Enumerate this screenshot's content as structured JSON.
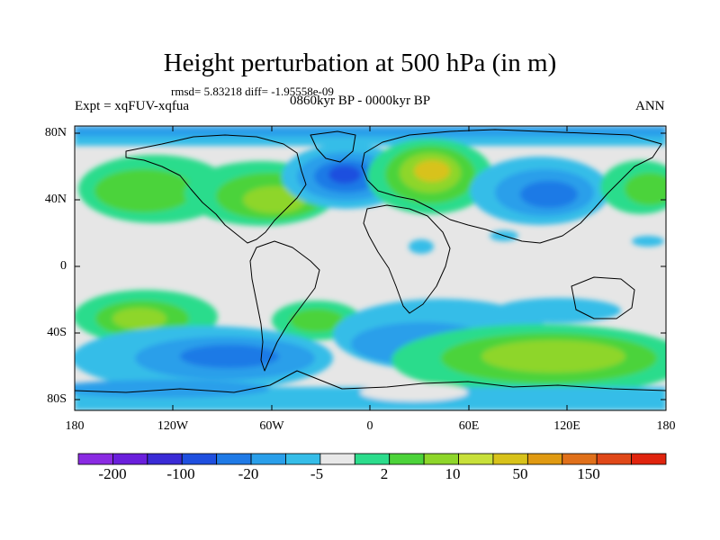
{
  "figure": {
    "title": "Height perturbation at 500 hPa (in m)",
    "stats": "rmsd= 5.83218 diff= -1.95558e-09",
    "period": "0860kyr BP - 0000kyr BP",
    "experiment": "Expt = xqFUV-xqfua",
    "season": "ANN"
  },
  "axes": {
    "lat_labels": [
      "80N",
      "40N",
      "0",
      "40S",
      "80S"
    ],
    "lon_labels": [
      "180",
      "120W",
      "60W",
      "0",
      "60E",
      "120E",
      "180"
    ]
  },
  "colorbar": {
    "colors": [
      "#8a2be2",
      "#6a1fdc",
      "#3a2bd6",
      "#1f4fdf",
      "#1f7ae6",
      "#2a9fea",
      "#36bde8",
      "#e8e8e8",
      "#2cdc8c",
      "#4cd33a",
      "#8ed62a",
      "#c8e03a",
      "#d8c21a",
      "#e09a12",
      "#e0701a",
      "#e04818",
      "#e0240e"
    ],
    "labels": [
      "-200",
      "-100",
      "-20",
      "-5",
      "2",
      "10",
      "50",
      "150"
    ]
  }
}
